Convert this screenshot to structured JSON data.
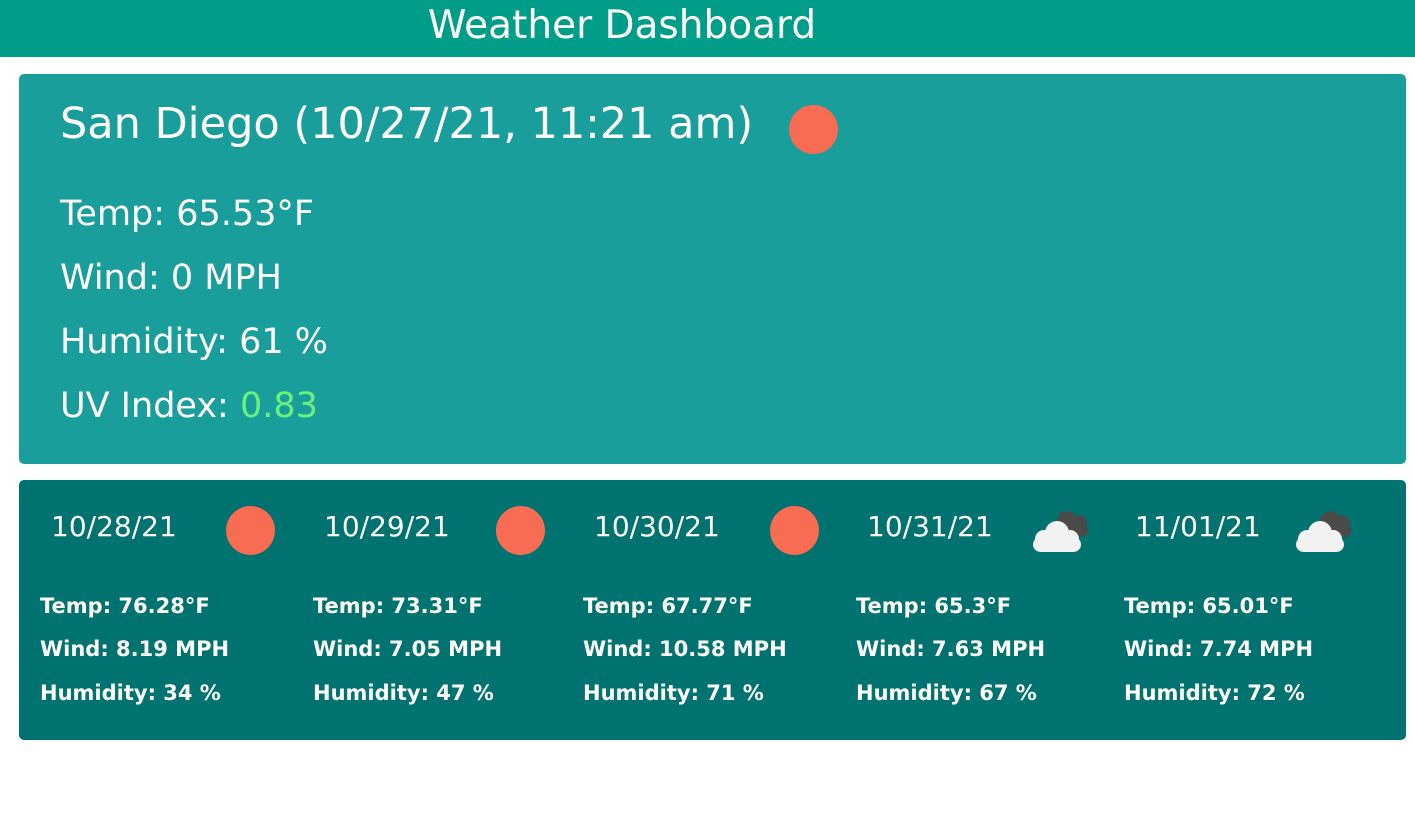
{
  "header": {
    "title": "Weather Dashboard",
    "color": "#009e88"
  },
  "current": {
    "title": "San Diego (10/27/21, 11:21 am)",
    "icon": "sun-icon",
    "temp": "Temp: 65.53°F",
    "wind": "Wind: 0 MPH",
    "humidity": "Humidity: 61 %",
    "uv_label": "UV Index: ",
    "uv_value": "0.83",
    "uv_color": "#6cf07e",
    "card_color": "#1a9e9b"
  },
  "forecast": {
    "card_color": "#00726f",
    "days": [
      {
        "date": "10/28/21",
        "icon": "sun-icon",
        "temp": "Temp: 76.28°F",
        "wind": "Wind: 8.19 MPH",
        "humidity": "Humidity: 34 %"
      },
      {
        "date": "10/29/21",
        "icon": "sun-icon",
        "temp": "Temp: 73.31°F",
        "wind": "Wind: 7.05 MPH",
        "humidity": "Humidity: 47 %"
      },
      {
        "date": "10/30/21",
        "icon": "sun-icon",
        "temp": "Temp: 67.77°F",
        "wind": "Wind: 10.58 MPH",
        "humidity": "Humidity: 71 %"
      },
      {
        "date": "10/31/21",
        "icon": "cloud-icon",
        "temp": "Temp: 65.3°F",
        "wind": "Wind: 7.63 MPH",
        "humidity": "Humidity: 67 %"
      },
      {
        "date": "11/01/21",
        "icon": "cloud-icon",
        "temp": "Temp: 65.01°F",
        "wind": "Wind: 7.74 MPH",
        "humidity": "Humidity: 72 %"
      }
    ]
  }
}
